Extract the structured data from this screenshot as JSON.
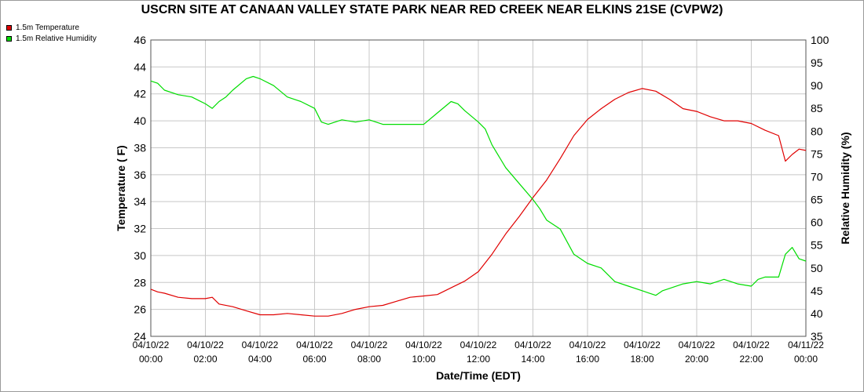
{
  "chart_data": {
    "type": "line",
    "title": "USCRN SITE AT CANAAN VALLEY STATE PARK NEAR RED CREEK NEAR ELKINS 21SE (CVPW2)",
    "xlabel": "Date/Time (EDT)",
    "ylabel": "Temperature ( F)",
    "y2label": "Relative Humidity (%)",
    "ylim": [
      24,
      46
    ],
    "y2lim": [
      35,
      100
    ],
    "xlim_hours": [
      0,
      24
    ],
    "grid": true,
    "legend_position": "top-left",
    "x_ticks": [
      {
        "date": "04/10/22",
        "time": "00:00"
      },
      {
        "date": "04/10/22",
        "time": "02:00"
      },
      {
        "date": "04/10/22",
        "time": "04:00"
      },
      {
        "date": "04/10/22",
        "time": "06:00"
      },
      {
        "date": "04/10/22",
        "time": "08:00"
      },
      {
        "date": "04/10/22",
        "time": "10:00"
      },
      {
        "date": "04/10/22",
        "time": "12:00"
      },
      {
        "date": "04/10/22",
        "time": "14:00"
      },
      {
        "date": "04/10/22",
        "time": "16:00"
      },
      {
        "date": "04/10/22",
        "time": "18:00"
      },
      {
        "date": "04/10/22",
        "time": "20:00"
      },
      {
        "date": "04/10/22",
        "time": "22:00"
      },
      {
        "date": "04/11/22",
        "time": "00:00"
      }
    ],
    "y_ticks": [
      "24",
      "26",
      "28",
      "30",
      "32",
      "34",
      "36",
      "38",
      "40",
      "42",
      "44",
      "46"
    ],
    "y2_ticks": [
      "35",
      "40",
      "45",
      "50",
      "55",
      "60",
      "65",
      "70",
      "75",
      "80",
      "85",
      "90",
      "95",
      "100"
    ],
    "series": [
      {
        "name": "1.5m Temperature",
        "axis": "left",
        "color": "#e00000",
        "x": [
          0,
          0.25,
          0.5,
          1,
          1.5,
          2,
          2.25,
          2.5,
          3,
          3.5,
          4,
          4.5,
          5,
          5.5,
          6,
          6.5,
          7,
          7.5,
          8,
          8.5,
          9,
          9.5,
          10,
          10.5,
          11,
          11.5,
          12,
          12.5,
          13,
          13.5,
          14,
          14.5,
          15,
          15.5,
          16,
          16.5,
          17,
          17.5,
          18,
          18.5,
          19,
          19.5,
          20,
          20.5,
          21,
          21.5,
          22,
          22.5,
          23,
          23.25,
          23.5,
          23.75,
          24
        ],
        "y": [
          27.5,
          27.3,
          27.2,
          26.9,
          26.8,
          26.8,
          26.9,
          26.4,
          26.2,
          25.9,
          25.6,
          25.6,
          25.7,
          25.6,
          25.5,
          25.5,
          25.7,
          26.0,
          26.2,
          26.3,
          26.6,
          26.9,
          27.0,
          27.1,
          27.6,
          28.1,
          28.8,
          30.1,
          31.6,
          32.9,
          34.3,
          35.6,
          37.2,
          38.9,
          40.1,
          40.9,
          41.6,
          42.1,
          42.4,
          42.2,
          41.6,
          40.9,
          40.7,
          40.3,
          40.0,
          40.0,
          39.8,
          39.3,
          38.9,
          37.0,
          37.5,
          37.9,
          37.8
        ]
      },
      {
        "name": "1.5m Relative Humidity",
        "axis": "right",
        "color": "#00dd00",
        "x": [
          0,
          0.25,
          0.5,
          1,
          1.5,
          2,
          2.25,
          2.5,
          2.75,
          3,
          3.5,
          3.75,
          4,
          4.5,
          5,
          5.5,
          6,
          6.25,
          6.5,
          7,
          7.5,
          8,
          8.5,
          9,
          9.5,
          10,
          10.5,
          11,
          11.25,
          11.5,
          12,
          12.25,
          12.5,
          13,
          13.5,
          14,
          14.25,
          14.5,
          15,
          15.5,
          16,
          16.5,
          17,
          17.5,
          18,
          18.25,
          18.5,
          18.75,
          19,
          19.5,
          20,
          20.5,
          21,
          21.5,
          22,
          22.25,
          22.5,
          23,
          23.25,
          23.5,
          23.75,
          24
        ],
        "y": [
          91.0,
          90.5,
          89.0,
          88.0,
          87.5,
          86.0,
          85.0,
          86.5,
          87.5,
          89.0,
          91.5,
          92.0,
          91.5,
          90.0,
          87.5,
          86.5,
          85.0,
          82.0,
          81.5,
          82.5,
          82.0,
          82.5,
          81.5,
          81.5,
          81.5,
          81.5,
          84.0,
          86.5,
          86.0,
          84.5,
          82.0,
          80.5,
          77.0,
          72.0,
          68.5,
          65.0,
          63.0,
          60.5,
          58.5,
          53.0,
          51.0,
          50.0,
          47.0,
          46.0,
          45.0,
          44.5,
          44.0,
          45.0,
          45.5,
          46.5,
          47.0,
          46.5,
          47.5,
          46.5,
          46.0,
          47.5,
          48.0,
          48.0,
          53.0,
          54.5,
          52.0,
          51.5
        ]
      }
    ]
  }
}
